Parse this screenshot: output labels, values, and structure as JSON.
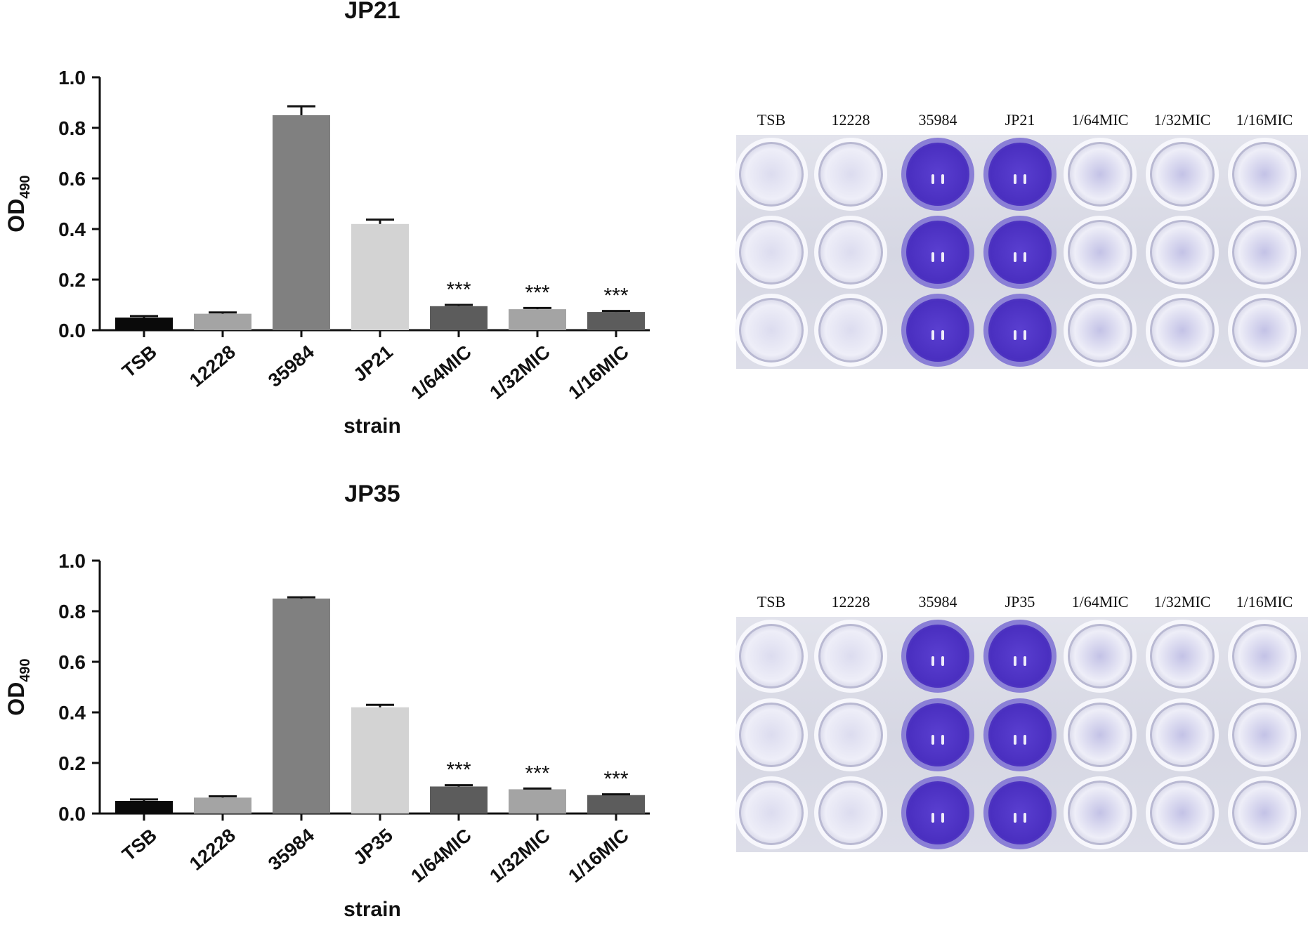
{
  "chart_data": [
    {
      "type": "bar",
      "title": "JP21",
      "xlabel": "strain",
      "ylabel": "OD",
      "ylabel_sub": "490",
      "ylim": [
        0,
        1.0
      ],
      "yticks": [
        "0.0",
        "0.2",
        "0.4",
        "0.6",
        "0.8",
        "1.0"
      ],
      "categories": [
        "TSB",
        "12228",
        "35984",
        "JP21",
        "1/64MIC",
        "1/32MIC",
        "1/16MIC"
      ],
      "values": [
        0.05,
        0.065,
        0.85,
        0.42,
        0.095,
        0.083,
        0.072
      ],
      "errors": [
        0.006,
        0.005,
        0.035,
        0.017,
        0.005,
        0.005,
        0.004
      ],
      "annotations": [
        "",
        "",
        "",
        "",
        "***",
        "***",
        "***"
      ],
      "colors": [
        "#0a0a0a",
        "#a4a4a4",
        "#808080",
        "#d3d3d3",
        "#5c5c5c",
        "#a4a4a4",
        "#5c5c5c"
      ],
      "grid": false,
      "legend": "none"
    },
    {
      "type": "bar",
      "title": "JP35",
      "xlabel": "strain",
      "ylabel": "OD",
      "ylabel_sub": "490",
      "ylim": [
        0,
        1.0
      ],
      "yticks": [
        "0.0",
        "0.2",
        "0.4",
        "0.6",
        "0.8",
        "1.0"
      ],
      "categories": [
        "TSB",
        "12228",
        "35984",
        "JP35",
        "1/64MIC",
        "1/32MIC",
        "1/16MIC"
      ],
      "values": [
        0.05,
        0.063,
        0.85,
        0.42,
        0.107,
        0.096,
        0.073
      ],
      "errors": [
        0.006,
        0.005,
        0.005,
        0.01,
        0.005,
        0.003,
        0.003
      ],
      "annotations": [
        "",
        "",
        "",
        "",
        "***",
        "***",
        "***"
      ],
      "colors": [
        "#0a0a0a",
        "#a4a4a4",
        "#808080",
        "#d3d3d3",
        "#5c5c5c",
        "#a4a4a4",
        "#5c5c5c"
      ],
      "grid": false,
      "legend": "none"
    }
  ],
  "plates": [
    {
      "labels": [
        "TSB",
        "12228",
        "35984",
        "JP21",
        "1/64MIC",
        "1/32MIC",
        "1/16MIC"
      ],
      "well_color": "#5a3fd0"
    },
    {
      "labels": [
        "TSB",
        "12228",
        "35984",
        "JP35",
        "1/64MIC",
        "1/32MIC",
        "1/16MIC"
      ],
      "well_color": "#5a3fd0"
    }
  ]
}
